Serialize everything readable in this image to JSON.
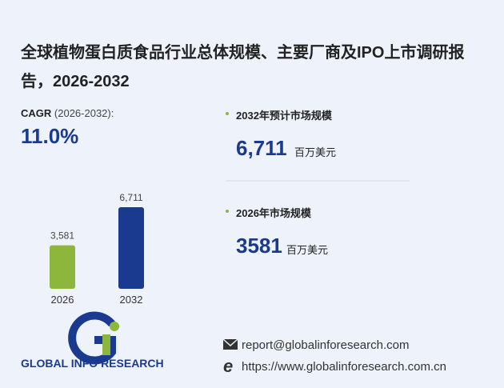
{
  "title": "全球植物蛋白质食品行业总体规模、主要厂商及IPO上市调研报告，2026-2032",
  "cagr": {
    "label": "CAGR",
    "period": "(2026-2032):",
    "value": "11.0%"
  },
  "chart_data": {
    "type": "bar",
    "categories": [
      "2026",
      "2032"
    ],
    "values": [
      3581,
      6711
    ],
    "value_labels": [
      "3,581",
      "6,711"
    ],
    "colors": [
      "#8db63c",
      "#1a3a8f"
    ]
  },
  "market": [
    {
      "label": "2032年预计市场规模",
      "value": "6,711",
      "unit": "百万美元"
    },
    {
      "label": "2026年市场规模",
      "value": "3581",
      "unit": "百万美元"
    }
  ],
  "footer": {
    "logo": "GLOBAL INFO RESEARCH",
    "email": "report@globalinforesearch.com",
    "url": "https://www.globalinforesearch.com.cn"
  }
}
